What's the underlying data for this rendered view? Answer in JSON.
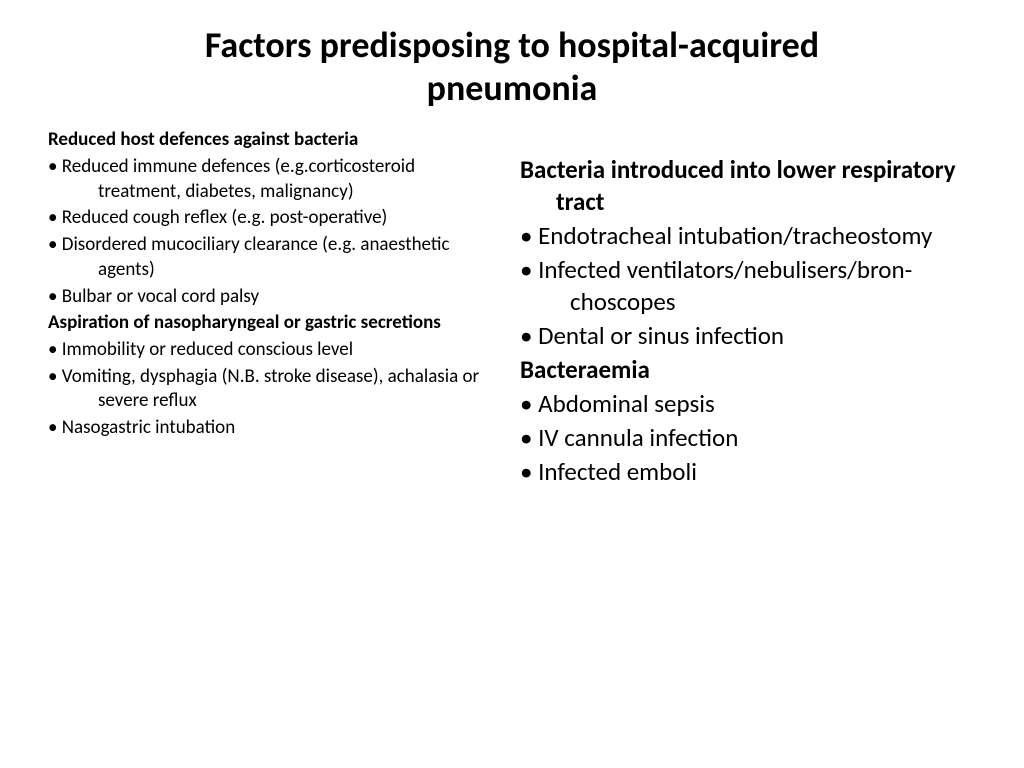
{
  "title": "Factors predisposing to hospital-acquired pneumonia",
  "left": {
    "h1": "Reduced host defences against bacteria",
    "b1": "• Reduced immune defences (e.g.corticosteroid treatment, diabetes, malignancy)",
    "b2": "• Reduced cough reflex (e.g. post-operative)",
    "b3": "• Disordered mucociliary clearance (e.g. anaesthetic agents)",
    "b4": "• Bulbar or vocal cord palsy",
    "h2": "Aspiration of nasopharyngeal or gastric secretions",
    "b5": "• Immobility or reduced conscious level",
    "b6": "• Vomiting, dysphagia (N.B. stroke disease), achalasia or  severe reflux",
    "b7": "• Nasogastric intubation"
  },
  "right": {
    "h1": "Bacteria introduced into lower respiratory tract",
    "b1": "• Endotracheal intubation/tracheostomy",
    "b2": "• Infected ventilators/nebulisers/bron-choscopes",
    "b3": "• Dental or sinus infection",
    "h2": "Bacteraemia",
    "b4": "• Abdominal sepsis",
    "b5": "• IV cannula infection",
    "b6": "• Infected emboli"
  },
  "style": {
    "background_color": "#ffffff",
    "text_color": "#000000",
    "title_fontsize_pt": 27,
    "left_fontsize_pt": 14,
    "right_fontsize_pt": 19,
    "font_family": "Calibri",
    "bold_weight": 700
  }
}
